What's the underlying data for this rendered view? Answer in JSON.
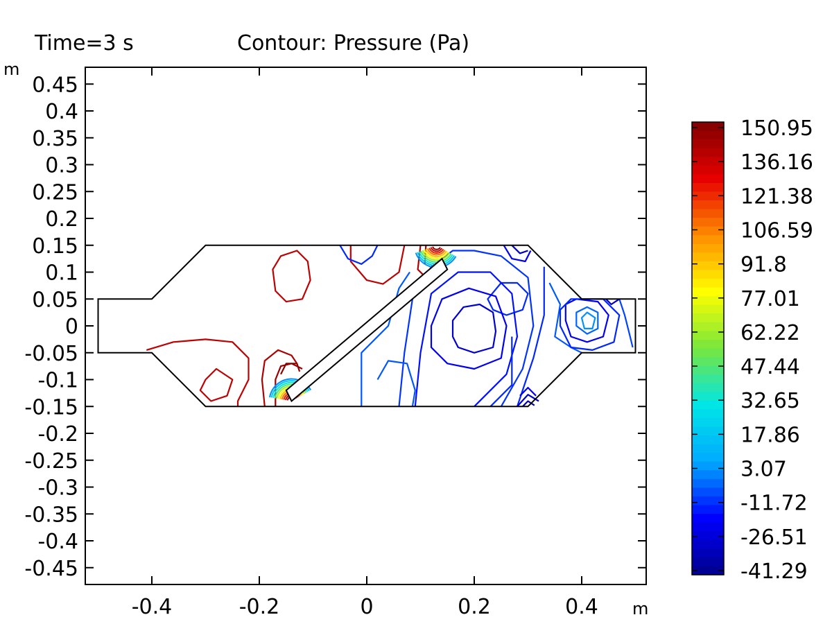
{
  "chart_data": {
    "type": "contour",
    "title_left": "Time=3 s",
    "title_right": "Contour: Pressure (Pa)",
    "x_unit": "m",
    "y_unit": "m",
    "xlim": [
      -0.52,
      0.52
    ],
    "ylim": [
      -0.48,
      0.48
    ],
    "x_ticks": [
      -0.4,
      -0.2,
      0,
      0.2,
      0.4
    ],
    "x_tick_labels": [
      "-0.4",
      "-0.2",
      "0",
      "0.2",
      "0.4"
    ],
    "y_ticks": [
      0.45,
      0.4,
      0.35,
      0.3,
      0.25,
      0.2,
      0.15,
      0.1,
      0.05,
      0,
      -0.05,
      -0.1,
      -0.15,
      -0.2,
      -0.25,
      -0.3,
      -0.35,
      -0.4,
      -0.45
    ],
    "y_tick_labels": [
      "0.45",
      "0.4",
      "0.35",
      "0.3",
      "0.25",
      "0.2",
      "0.15",
      "0.1",
      "0.05",
      "0",
      "-0.05",
      "-0.1",
      "-0.15",
      "-0.2",
      "-0.25",
      "-0.3",
      "-0.35",
      "-0.4",
      "-0.45"
    ],
    "grid": false,
    "colorbar": {
      "min": -41.29,
      "max": 150.95,
      "colormap": "rainbow",
      "labels": [
        "150.95",
        "136.16",
        "121.38",
        "106.59",
        "91.8",
        "77.01",
        "62.22",
        "47.44",
        "32.65",
        "17.86",
        "3.07",
        "-11.72",
        "-26.51",
        "-41.29"
      ]
    },
    "geometry": {
      "outline": [
        [
          -0.5,
          0.05
        ],
        [
          -0.4,
          0.05
        ],
        [
          -0.3,
          0.15
        ],
        [
          0.3,
          0.15
        ],
        [
          0.4,
          0.05
        ],
        [
          0.5,
          0.05
        ],
        [
          0.5,
          -0.05
        ],
        [
          0.4,
          -0.05
        ],
        [
          0.3,
          -0.15
        ],
        [
          -0.3,
          -0.15
        ],
        [
          -0.4,
          -0.05
        ],
        [
          -0.5,
          -0.05
        ]
      ],
      "baffle": [
        [
          -0.15,
          -0.12
        ],
        [
          0.14,
          0.125
        ],
        [
          0.15,
          0.105
        ],
        [
          -0.14,
          -0.14
        ]
      ]
    },
    "contours": [
      {
        "value": 136.16,
        "points": [
          [
            -0.175,
            0.105
          ],
          [
            -0.16,
            0.13
          ],
          [
            -0.13,
            0.14
          ],
          [
            -0.11,
            0.12
          ],
          [
            -0.105,
            0.085
          ],
          [
            -0.12,
            0.05
          ],
          [
            -0.15,
            0.045
          ],
          [
            -0.17,
            0.065
          ],
          [
            -0.175,
            0.105
          ]
        ],
        "closed": true
      },
      {
        "value": 136.16,
        "points": [
          [
            -0.03,
            0.15
          ],
          [
            -0.03,
            0.12
          ],
          [
            0,
            0.085
          ],
          [
            0.03,
            0.078
          ],
          [
            0.06,
            0.1
          ],
          [
            0.07,
            0.15
          ]
        ],
        "closed": false
      },
      {
        "value": 140,
        "points": [
          [
            0.1,
            0.15
          ],
          [
            0.095,
            0.105
          ],
          [
            0.105,
            0.095
          ]
        ],
        "closed": false
      },
      {
        "value": 140,
        "points": [
          [
            0.11,
            0.15
          ],
          [
            0.108,
            0.115
          ]
        ],
        "closed": false
      },
      {
        "value": 136.16,
        "points": [
          [
            -0.41,
            -0.045
          ],
          [
            -0.36,
            -0.03
          ],
          [
            -0.3,
            -0.025
          ],
          [
            -0.25,
            -0.03
          ],
          [
            -0.22,
            -0.06
          ],
          [
            -0.22,
            -0.1
          ],
          [
            -0.24,
            -0.14
          ],
          [
            -0.24,
            -0.15
          ]
        ],
        "closed": false
      },
      {
        "value": 136.16,
        "points": [
          [
            -0.3,
            -0.1
          ],
          [
            -0.28,
            -0.08
          ],
          [
            -0.25,
            -0.1
          ],
          [
            -0.26,
            -0.13
          ],
          [
            -0.29,
            -0.14
          ],
          [
            -0.31,
            -0.12
          ],
          [
            -0.3,
            -0.1
          ]
        ],
        "closed": true
      },
      {
        "value": 140,
        "points": [
          [
            -0.19,
            -0.15
          ],
          [
            -0.195,
            -0.1
          ],
          [
            -0.19,
            -0.065
          ],
          [
            -0.165,
            -0.045
          ],
          [
            -0.14,
            -0.055
          ],
          [
            -0.13,
            -0.07
          ]
        ],
        "closed": false
      },
      {
        "value": 145,
        "points": [
          [
            -0.17,
            -0.15
          ],
          [
            -0.17,
            -0.1
          ],
          [
            -0.16,
            -0.075
          ],
          [
            -0.14,
            -0.07
          ],
          [
            -0.12,
            -0.08
          ]
        ],
        "closed": false
      },
      {
        "value": 148,
        "points": [
          [
            -0.16,
            -0.09
          ],
          [
            -0.15,
            -0.07
          ],
          [
            -0.13,
            -0.07
          ],
          [
            -0.125,
            -0.085
          ]
        ],
        "closed": false
      },
      {
        "value": -11.72,
        "points": [
          [
            -0.05,
            0.15
          ],
          [
            -0.035,
            0.125
          ],
          [
            -0.01,
            0.115
          ],
          [
            0.01,
            0.13
          ],
          [
            0.02,
            0.15
          ]
        ],
        "closed": false
      },
      {
        "value": -11.72,
        "points": [
          [
            0.225,
            0.05
          ],
          [
            0.25,
            0.08
          ],
          [
            0.28,
            0.08
          ],
          [
            0.3,
            0.06
          ],
          [
            0.29,
            0.03
          ],
          [
            0.26,
            0.02
          ],
          [
            0.235,
            0.03
          ],
          [
            0.225,
            0.05
          ]
        ],
        "closed": true
      },
      {
        "value": -26.51,
        "points": [
          [
            0.16,
            0.01
          ],
          [
            0.18,
            0.035
          ],
          [
            0.21,
            0.04
          ],
          [
            0.235,
            0.025
          ],
          [
            0.24,
            -0.01
          ],
          [
            0.235,
            -0.04
          ],
          [
            0.2,
            -0.05
          ],
          [
            0.17,
            -0.04
          ],
          [
            0.16,
            -0.02
          ],
          [
            0.16,
            0.01
          ]
        ],
        "closed": true
      },
      {
        "value": -20,
        "points": [
          [
            0.12,
            0.0
          ],
          [
            0.14,
            0.05
          ],
          [
            0.19,
            0.07
          ],
          [
            0.24,
            0.055
          ],
          [
            0.26,
            0.0
          ],
          [
            0.25,
            -0.06
          ],
          [
            0.2,
            -0.08
          ],
          [
            0.15,
            -0.07
          ],
          [
            0.12,
            -0.04
          ],
          [
            0.12,
            0.0
          ]
        ],
        "closed": true
      },
      {
        "value": -15,
        "points": [
          [
            0.09,
            -0.15
          ],
          [
            0.1,
            -0.05
          ],
          [
            0.12,
            0.06
          ],
          [
            0.17,
            0.1
          ],
          [
            0.23,
            0.1
          ],
          [
            0.27,
            0.06
          ],
          [
            0.28,
            -0.02
          ],
          [
            0.26,
            -0.09
          ],
          [
            0.22,
            -0.13
          ],
          [
            0.2,
            -0.15
          ]
        ],
        "closed": false
      },
      {
        "value": -10,
        "points": [
          [
            0.06,
            -0.15
          ],
          [
            0.07,
            -0.05
          ],
          [
            0.085,
            0.05
          ],
          [
            0.12,
            0.11
          ],
          [
            0.16,
            0.14
          ],
          [
            0.2,
            0.14
          ],
          [
            0.25,
            0.13
          ],
          [
            0.3,
            0.09
          ],
          [
            0.31,
            0.0
          ],
          [
            0.29,
            -0.08
          ],
          [
            0.25,
            -0.15
          ]
        ],
        "closed": false
      },
      {
        "value": -5,
        "points": [
          [
            -0.01,
            -0.15
          ],
          [
            -0.01,
            -0.05
          ],
          [
            0.04,
            0.0
          ],
          [
            0.06,
            0.07
          ],
          [
            0.08,
            0.1
          ]
        ],
        "closed": false
      },
      {
        "value": -5,
        "points": [
          [
            0.02,
            -0.1
          ],
          [
            0.04,
            -0.065
          ],
          [
            0.075,
            -0.07
          ],
          [
            0.09,
            -0.12
          ],
          [
            0.085,
            -0.15
          ]
        ],
        "closed": false
      },
      {
        "value": -11.72,
        "points": [
          [
            0.27,
            -0.02
          ],
          [
            0.27,
            -0.11
          ],
          [
            0.23,
            -0.15
          ]
        ],
        "closed": false
      },
      {
        "value": -11.72,
        "points": [
          [
            0.33,
            0.11
          ],
          [
            0.33,
            0.02
          ],
          [
            0.31,
            -0.06
          ],
          [
            0.28,
            -0.15
          ]
        ],
        "closed": false
      },
      {
        "value": -20,
        "points": [
          [
            0.285,
            -0.13
          ],
          [
            0.3,
            -0.115
          ],
          [
            0.315,
            -0.13
          ]
        ],
        "closed": false
      },
      {
        "value": -26.51,
        "points": [
          [
            0.28,
            -0.15
          ],
          [
            0.3,
            -0.128
          ],
          [
            0.32,
            -0.14
          ]
        ],
        "closed": false
      },
      {
        "value": -35,
        "points": [
          [
            0.29,
            -0.15
          ],
          [
            0.3,
            -0.14
          ],
          [
            0.312,
            -0.148
          ]
        ],
        "closed": false
      },
      {
        "value": -20,
        "points": [
          [
            0.255,
            0.15
          ],
          [
            0.27,
            0.125
          ],
          [
            0.295,
            0.12
          ],
          [
            0.305,
            0.14
          ]
        ],
        "closed": false
      },
      {
        "value": -30,
        "points": [
          [
            0.27,
            0.15
          ],
          [
            0.285,
            0.135
          ],
          [
            0.3,
            0.14
          ]
        ],
        "closed": false
      },
      {
        "value": -5,
        "points": [
          [
            0.34,
            0.08
          ],
          [
            0.36,
            0.04
          ],
          [
            0.35,
            -0.02
          ],
          [
            0.38,
            -0.04
          ],
          [
            0.4,
            -0.05
          ]
        ],
        "closed": false
      },
      {
        "value": -20,
        "points": [
          [
            0.37,
            0.04
          ],
          [
            0.39,
            0.05
          ],
          [
            0.43,
            0.045
          ],
          [
            0.45,
            0.02
          ],
          [
            0.44,
            -0.02
          ],
          [
            0.41,
            -0.03
          ],
          [
            0.38,
            -0.02
          ],
          [
            0.37,
            0.01
          ],
          [
            0.37,
            0.04
          ]
        ],
        "closed": true
      },
      {
        "value": -11.72,
        "points": [
          [
            0.36,
            0.03
          ],
          [
            0.38,
            0.05
          ],
          [
            0.44,
            0.05
          ],
          [
            0.47,
            0.02
          ],
          [
            0.46,
            -0.03
          ],
          [
            0.42,
            -0.045
          ],
          [
            0.38,
            -0.04
          ],
          [
            0.36,
            0.0
          ],
          [
            0.36,
            0.03
          ]
        ],
        "closed": true
      },
      {
        "value": 3.07,
        "points": [
          [
            0.4,
            0.015
          ],
          [
            0.41,
            0.025
          ],
          [
            0.425,
            0.015
          ],
          [
            0.42,
            -0.005
          ],
          [
            0.405,
            -0.005
          ],
          [
            0.4,
            0.015
          ]
        ],
        "closed": true
      },
      {
        "value": -3,
        "points": [
          [
            0.39,
            0.025
          ],
          [
            0.41,
            0.035
          ],
          [
            0.43,
            0.025
          ],
          [
            0.43,
            -0.005
          ],
          [
            0.41,
            -0.015
          ],
          [
            0.39,
            0.0
          ],
          [
            0.39,
            0.025
          ]
        ],
        "closed": true
      },
      {
        "value": -8,
        "points": [
          [
            0.47,
            0.05
          ],
          [
            0.48,
            0.02
          ],
          [
            0.49,
            -0.02
          ],
          [
            0.495,
            -0.04
          ]
        ],
        "closed": false
      },
      {
        "value": -30,
        "points": [
          [
            0.445,
            0.05
          ],
          [
            0.455,
            0.04
          ],
          [
            0.47,
            0.05
          ]
        ],
        "closed": false
      }
    ],
    "gradient_fans": [
      {
        "center": [
          -0.14,
          -0.14
        ],
        "angle_from": 170,
        "angle_to": 30,
        "values": [
          148,
          136.16,
          121.38,
          106.59,
          91.8,
          77.01,
          62.22,
          47.44,
          32.65,
          17.86,
          3.07
        ]
      },
      {
        "center": [
          0.13,
          0.15
        ],
        "angle_from": 200,
        "angle_to": 330,
        "values": [
          148,
          136.16,
          121.38,
          106.59,
          91.8,
          77.01,
          62.22,
          47.44,
          32.65,
          17.86,
          3.07
        ]
      }
    ]
  }
}
